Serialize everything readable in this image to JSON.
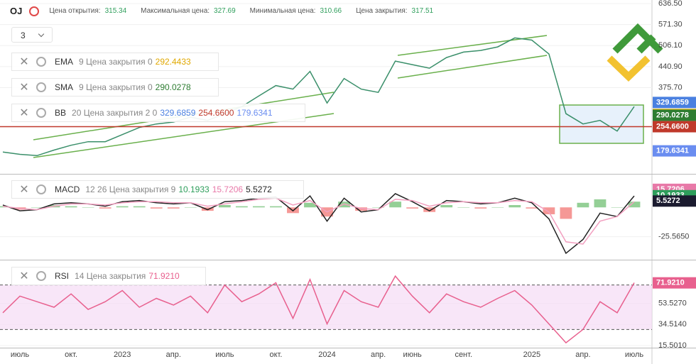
{
  "header": {
    "symbol": "OJ",
    "fields": [
      {
        "label": "Цена открытия:",
        "value": "315.34"
      },
      {
        "label": "Максимальная цена:",
        "value": "327.69"
      },
      {
        "label": "Минимальная цена:",
        "value": "310.66"
      },
      {
        "label": "Цена закрытия:",
        "value": "317.51"
      }
    ],
    "interval": "3"
  },
  "legends": [
    {
      "name": "EMA",
      "params": "9 Цена закрытия 0"
    },
    {
      "name": "SMA",
      "params": "9 Цена закрытия 0"
    },
    {
      "name": "BB",
      "params": "20 Цена закрытия 2 0"
    },
    {
      "name": "MACD",
      "params": "12 26 Цена закрытия 9"
    },
    {
      "name": "RSI",
      "params": "14 Цена закрытия"
    }
  ],
  "chart_data": [
    {
      "type": "line",
      "categories": [
        null,
        "июль",
        null,
        null,
        "окт.",
        null,
        null,
        "2023",
        null,
        null,
        "апр.",
        null,
        null,
        "июль",
        null,
        null,
        "окт.",
        null,
        null,
        "2024",
        null,
        null,
        "апр.",
        null,
        "июнь",
        null,
        null,
        "сент.",
        null,
        null,
        null,
        "2025",
        null,
        null,
        "апр.",
        null,
        null,
        "июль"
      ],
      "series": [
        {
          "color": "#3a8f6a",
          "values": [
            176,
            169,
            165,
            182,
            197,
            208,
            208,
            230,
            252,
            263,
            269,
            284,
            274,
            295,
            317,
            350,
            382,
            371,
            426,
            328,
            404,
            371,
            361,
            458,
            447,
            436,
            469,
            486,
            491,
            502,
            530,
            523,
            480,
            295,
            263,
            274,
            241,
            317
          ]
        }
      ],
      "ylim": [
        110.6,
        643
      ],
      "yticks": [
        {
          "value": 636.5,
          "label": "636.50"
        },
        {
          "value": 571.3,
          "label": "571.30"
        },
        {
          "value": 506.1,
          "label": "506.10"
        },
        {
          "value": 440.9,
          "label": "440.90"
        },
        {
          "value": 375.7,
          "label": "375.70"
        }
      ],
      "markers": [
        {
          "value": 329.6859,
          "label": "329.6859",
          "color": "#4a80e0"
        },
        {
          "value": 292.4433,
          "label": "292.4433",
          "color": "#f0b400"
        },
        {
          "value": 290.0278,
          "label": "290.0278",
          "color": "#2e7d32"
        },
        {
          "value": 254.66,
          "label": "254.6600",
          "color": "#c0392b",
          "line": true
        },
        {
          "value": 179.6341,
          "label": "179.6341",
          "color": "#6a8df0"
        }
      ]
    },
    {
      "type": "macd",
      "series": [
        {
          "type": "bar",
          "color": "#4caf50",
          "negative_color": "#ef5350",
          "values": [
            1,
            -2,
            0,
            2,
            1,
            0,
            -1,
            1,
            1,
            -1,
            -1,
            0,
            -3,
            2,
            1,
            1,
            1,
            -5,
            4,
            -8,
            5,
            -3,
            0,
            5,
            -1,
            -4,
            2,
            0,
            -1,
            0,
            2,
            -1,
            -6,
            -10,
            4,
            7,
            0,
            5
          ]
        },
        {
          "color": "#222222",
          "values": [
            2,
            -3,
            -2,
            3,
            4,
            3,
            1,
            5,
            6,
            4,
            3,
            4,
            -2,
            5,
            6,
            8,
            9,
            -3,
            10,
            -12,
            8,
            -4,
            -2,
            12,
            5,
            -3,
            6,
            5,
            3,
            4,
            8,
            4,
            -10,
            -40,
            -28,
            -5,
            -8,
            10
          ]
        },
        {
          "color": "#f2a0c0",
          "values": [
            1,
            -1,
            -2,
            1,
            3,
            3,
            2,
            4,
            5,
            5,
            4,
            4,
            1,
            3,
            5,
            7,
            8,
            2,
            6,
            -4,
            3,
            -1,
            -2,
            7,
            6,
            1,
            4,
            5,
            4,
            4,
            6,
            5,
            -4,
            -30,
            -32,
            -12,
            -8,
            5
          ]
        }
      ],
      "ylim": [
        -45,
        28
      ],
      "yticks": [
        {
          "value": -25.565,
          "label": "-25.5650"
        }
      ],
      "markers": [
        {
          "value": 15.7206,
          "label": "15.7206",
          "color": "#e879a8"
        },
        {
          "value": 10.1933,
          "label": "10.1933",
          "color": "#2e9e5b"
        },
        {
          "value": 5.5272,
          "label": "5.5272",
          "color": "#1b1b2f"
        }
      ]
    },
    {
      "type": "line",
      "series": [
        {
          "color": "#e8608e",
          "values": [
            45,
            60,
            55,
            50,
            62,
            48,
            55,
            65,
            50,
            58,
            52,
            60,
            45,
            70,
            55,
            62,
            72,
            40,
            75,
            35,
            65,
            55,
            50,
            78,
            60,
            45,
            62,
            55,
            50,
            58,
            65,
            52,
            35,
            18,
            30,
            55,
            45,
            72
          ]
        }
      ],
      "ylim": [
        13.6,
        91.5
      ],
      "yticks": [
        {
          "value": 53.527,
          "label": "53.5270"
        },
        {
          "value": 34.514,
          "label": "34.5140"
        },
        {
          "value": 15.501,
          "label": "15.5010"
        }
      ],
      "levels": [
        30,
        70
      ],
      "markers": [
        {
          "value": 71.921,
          "label": "71.9210",
          "color": "#e8608e"
        }
      ]
    }
  ]
}
